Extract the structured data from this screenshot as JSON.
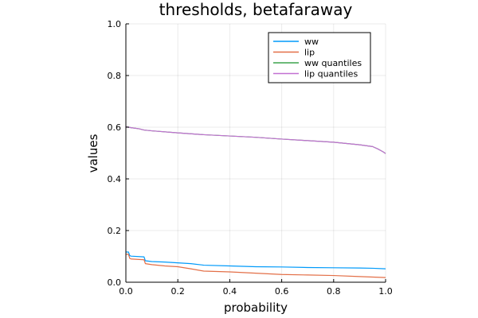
{
  "chart_data": {
    "type": "line",
    "title": "thresholds, betafaraway",
    "xlabel": "probability",
    "ylabel": "values",
    "xlim": [
      0,
      1
    ],
    "ylim": [
      0,
      1
    ],
    "xticks": [
      "0.0",
      "0.2",
      "0.4",
      "0.6",
      "0.8",
      "1.0"
    ],
    "yticks": [
      "0.0",
      "0.2",
      "0.4",
      "0.6",
      "0.8",
      "1.0"
    ],
    "grid": true,
    "legend_position": "top-right",
    "series": [
      {
        "name": "ww",
        "color": "#009AFA",
        "x": [
          0.0,
          0.01,
          0.015,
          0.02,
          0.07,
          0.075,
          0.1,
          0.15,
          0.2,
          0.25,
          0.3,
          0.4,
          0.5,
          0.6,
          0.7,
          0.8,
          0.9,
          0.95,
          1.0
        ],
        "y": [
          0.117,
          0.117,
          0.103,
          0.101,
          0.098,
          0.083,
          0.08,
          0.078,
          0.075,
          0.072,
          0.066,
          0.063,
          0.06,
          0.059,
          0.057,
          0.056,
          0.055,
          0.054,
          0.052
        ]
      },
      {
        "name": "lip",
        "color": "#E36F47",
        "x": [
          0.0,
          0.01,
          0.015,
          0.02,
          0.07,
          0.075,
          0.1,
          0.15,
          0.2,
          0.25,
          0.3,
          0.4,
          0.5,
          0.6,
          0.7,
          0.8,
          0.9,
          0.95,
          1.0
        ],
        "y": [
          0.108,
          0.108,
          0.092,
          0.09,
          0.087,
          0.072,
          0.068,
          0.063,
          0.06,
          0.052,
          0.043,
          0.04,
          0.035,
          0.03,
          0.028,
          0.026,
          0.022,
          0.02,
          0.018
        ]
      },
      {
        "name": "ww quantiles",
        "color": "#3DA44D",
        "x": [
          0.0,
          0.02,
          0.05,
          0.07,
          0.1,
          0.2,
          0.3,
          0.4,
          0.5,
          0.6,
          0.7,
          0.8,
          0.9,
          0.95,
          0.97,
          0.99,
          1.0
        ],
        "y": [
          0.602,
          0.598,
          0.594,
          0.589,
          0.586,
          0.578,
          0.571,
          0.566,
          0.561,
          0.554,
          0.548,
          0.542,
          0.532,
          0.525,
          0.516,
          0.505,
          0.498
        ]
      },
      {
        "name": "lip quantiles",
        "color": "#C271D2",
        "x": [
          0.0,
          0.02,
          0.05,
          0.07,
          0.1,
          0.2,
          0.3,
          0.4,
          0.5,
          0.6,
          0.7,
          0.8,
          0.9,
          0.95,
          0.97,
          0.99,
          1.0
        ],
        "y": [
          0.602,
          0.598,
          0.594,
          0.589,
          0.586,
          0.578,
          0.571,
          0.566,
          0.561,
          0.554,
          0.548,
          0.542,
          0.532,
          0.525,
          0.516,
          0.505,
          0.498
        ]
      }
    ]
  }
}
